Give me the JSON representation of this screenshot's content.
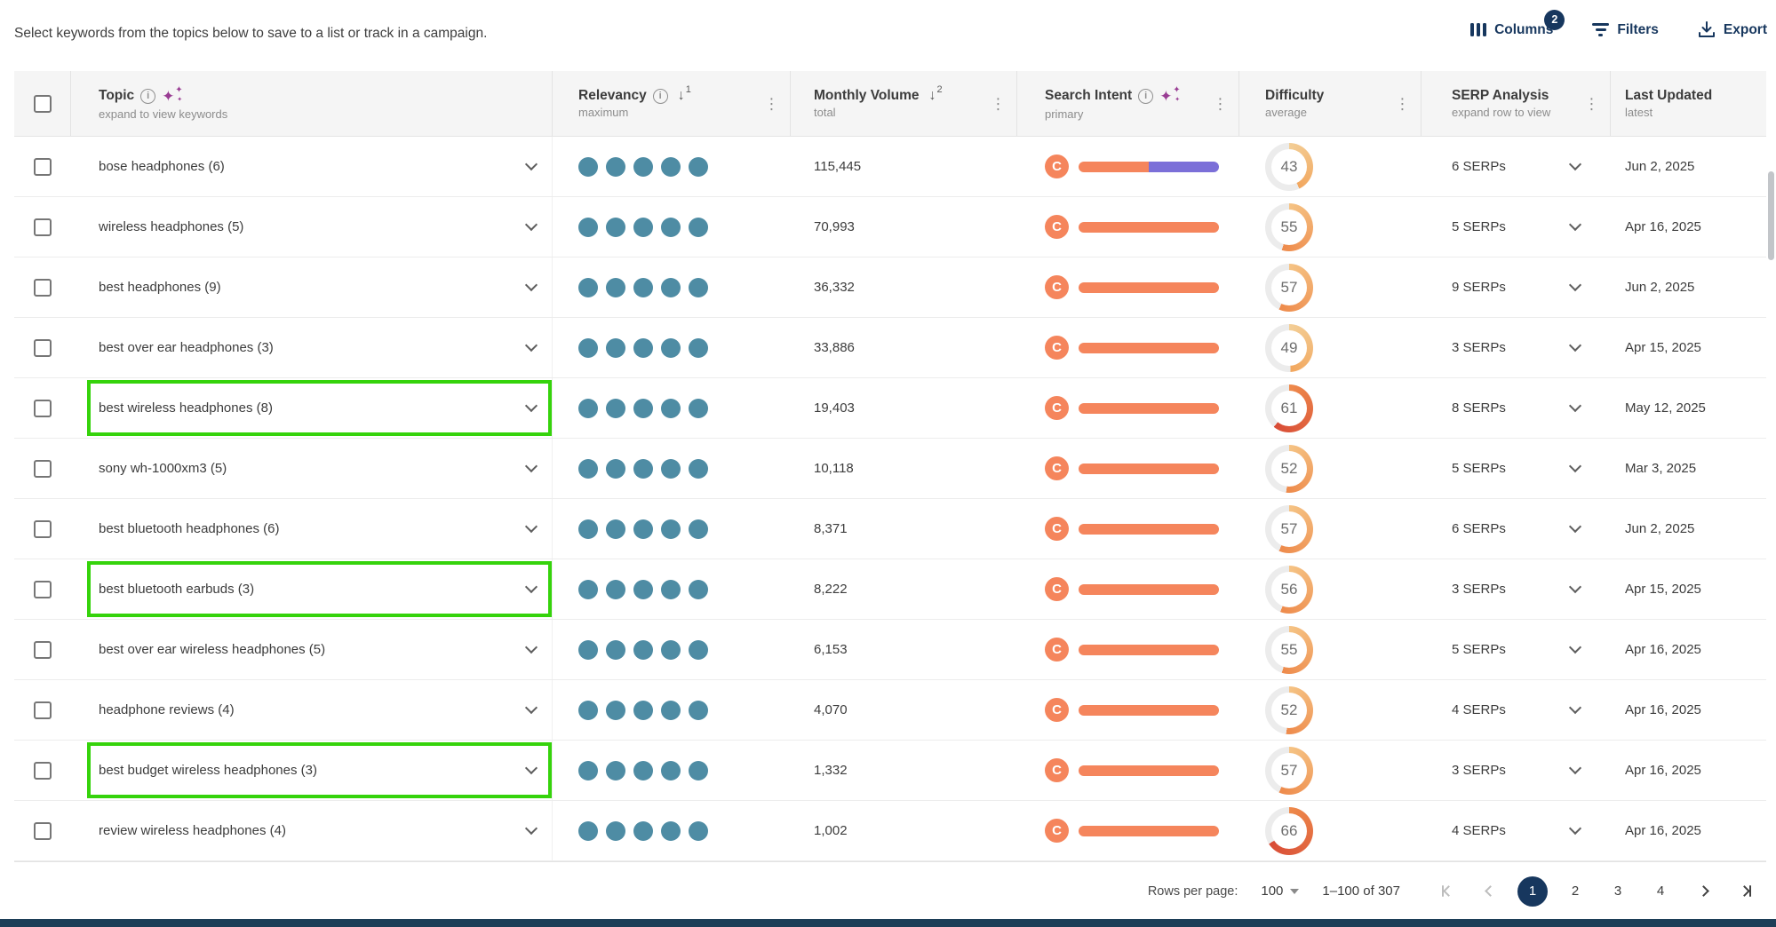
{
  "page": {
    "intro_text": "Select keywords from the topics below to save to a list or track in a campaign."
  },
  "toolbar": {
    "columns_label": "Columns",
    "columns_badge": "2",
    "filters_label": "Filters",
    "export_label": "Export"
  },
  "table": {
    "headers": {
      "topic": {
        "label": "Topic",
        "subtitle": "expand to view keywords"
      },
      "relevancy": {
        "label": "Relevancy",
        "subtitle": "maximum",
        "sort_rank": "1"
      },
      "monthly_volume": {
        "label": "Monthly Volume",
        "subtitle": "total",
        "sort_rank": "2"
      },
      "search_intent": {
        "label": "Search Intent",
        "subtitle": "primary"
      },
      "difficulty": {
        "label": "Difficulty",
        "subtitle": "average"
      },
      "serp_analysis": {
        "label": "SERP Analysis",
        "subtitle": "expand row to view"
      },
      "last_updated": {
        "label": "Last Updated",
        "subtitle": "latest"
      }
    },
    "rows": [
      {
        "topic": "bose headphones (6)",
        "relevancy": 5,
        "volume": "115,445",
        "intent": {
          "label": "C",
          "segments": [
            {
              "color": "orange",
              "pct": 50
            },
            {
              "color": "purple",
              "pct": 50
            }
          ]
        },
        "difficulty": 43,
        "serps": "6 SERPs",
        "updated": "Jun 2, 2025",
        "highlighted": false
      },
      {
        "topic": "wireless headphones (5)",
        "relevancy": 5,
        "volume": "70,993",
        "intent": {
          "label": "C",
          "segments": [
            {
              "color": "orange",
              "pct": 100
            }
          ]
        },
        "difficulty": 55,
        "serps": "5 SERPs",
        "updated": "Apr 16, 2025",
        "highlighted": false
      },
      {
        "topic": "best headphones (9)",
        "relevancy": 5,
        "volume": "36,332",
        "intent": {
          "label": "C",
          "segments": [
            {
              "color": "orange",
              "pct": 100
            }
          ]
        },
        "difficulty": 57,
        "serps": "9 SERPs",
        "updated": "Jun 2, 2025",
        "highlighted": false
      },
      {
        "topic": "best over ear headphones (3)",
        "relevancy": 5,
        "volume": "33,886",
        "intent": {
          "label": "C",
          "segments": [
            {
              "color": "orange",
              "pct": 100
            }
          ]
        },
        "difficulty": 49,
        "serps": "3 SERPs",
        "updated": "Apr 15, 2025",
        "highlighted": false
      },
      {
        "topic": "best wireless headphones (8)",
        "relevancy": 5,
        "volume": "19,403",
        "intent": {
          "label": "C",
          "segments": [
            {
              "color": "orange",
              "pct": 100
            }
          ]
        },
        "difficulty": 61,
        "serps": "8 SERPs",
        "updated": "May 12, 2025",
        "highlighted": true
      },
      {
        "topic": "sony wh-1000xm3 (5)",
        "relevancy": 5,
        "volume": "10,118",
        "intent": {
          "label": "C",
          "segments": [
            {
              "color": "orange",
              "pct": 100
            }
          ]
        },
        "difficulty": 52,
        "serps": "5 SERPs",
        "updated": "Mar 3, 2025",
        "highlighted": false
      },
      {
        "topic": "best bluetooth headphones (6)",
        "relevancy": 5,
        "volume": "8,371",
        "intent": {
          "label": "C",
          "segments": [
            {
              "color": "orange",
              "pct": 100
            }
          ]
        },
        "difficulty": 57,
        "serps": "6 SERPs",
        "updated": "Jun 2, 2025",
        "highlighted": false
      },
      {
        "topic": "best bluetooth earbuds (3)",
        "relevancy": 5,
        "volume": "8,222",
        "intent": {
          "label": "C",
          "segments": [
            {
              "color": "orange",
              "pct": 100
            }
          ]
        },
        "difficulty": 56,
        "serps": "3 SERPs",
        "updated": "Apr 15, 2025",
        "highlighted": true
      },
      {
        "topic": "best over ear wireless headphones (5)",
        "relevancy": 5,
        "volume": "6,153",
        "intent": {
          "label": "C",
          "segments": [
            {
              "color": "orange",
              "pct": 100
            }
          ]
        },
        "difficulty": 55,
        "serps": "5 SERPs",
        "updated": "Apr 16, 2025",
        "highlighted": false
      },
      {
        "topic": "headphone reviews (4)",
        "relevancy": 5,
        "volume": "4,070",
        "intent": {
          "label": "C",
          "segments": [
            {
              "color": "orange",
              "pct": 100
            }
          ]
        },
        "difficulty": 52,
        "serps": "4 SERPs",
        "updated": "Apr 16, 2025",
        "highlighted": false
      },
      {
        "topic": "best budget wireless headphones (3)",
        "relevancy": 5,
        "volume": "1,332",
        "intent": {
          "label": "C",
          "segments": [
            {
              "color": "orange",
              "pct": 100
            }
          ]
        },
        "difficulty": 57,
        "serps": "3 SERPs",
        "updated": "Apr 16, 2025",
        "highlighted": true
      },
      {
        "topic": "review wireless headphones (4)",
        "relevancy": 5,
        "volume": "1,002",
        "intent": {
          "label": "C",
          "segments": [
            {
              "color": "orange",
              "pct": 100
            }
          ]
        },
        "difficulty": 66,
        "serps": "4 SERPs",
        "updated": "Apr 16, 2025",
        "highlighted": false
      }
    ]
  },
  "pagination": {
    "rows_per_page_label": "Rows per page:",
    "rows_per_page_value": "100",
    "range_label": "1–100 of 307",
    "pages": [
      "1",
      "2",
      "3",
      "4"
    ],
    "active_page": "1"
  },
  "colors": {
    "navy": "#17375E",
    "teal_dot": "#4E8CA4",
    "intent_orange": "#F5855C",
    "intent_purple": "#7B6FD8",
    "highlight_green": "#35D30B",
    "gauge_low_arc": "#F2A75F",
    "gauge_mid_arc": "#EE8A4B",
    "gauge_high_arc": "#D84B36"
  }
}
